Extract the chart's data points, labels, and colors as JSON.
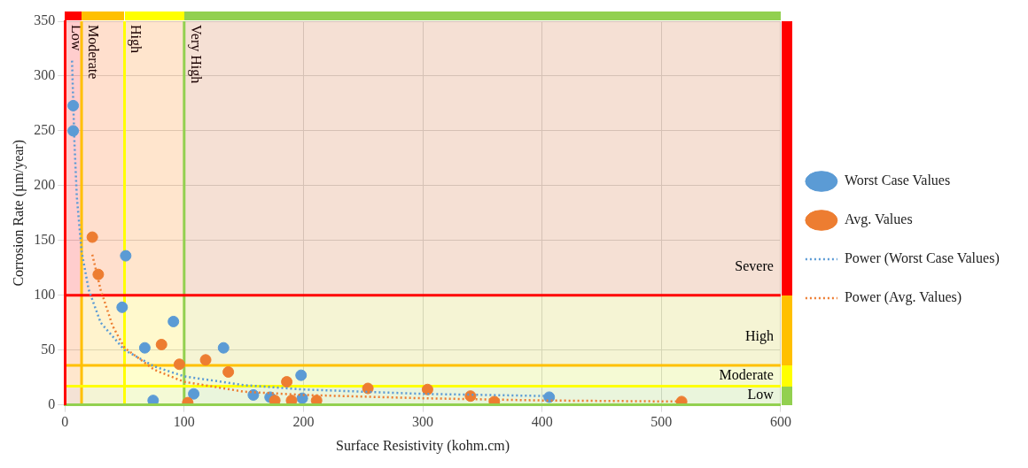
{
  "chart_data": {
    "type": "scatter",
    "xlabel": "Surface Resistivity (kohm.cm)",
    "ylabel": "Corrosion Rate (µm/year)",
    "xlim": [
      0,
      600
    ],
    "xticks": [
      0,
      100,
      200,
      300,
      400,
      500,
      600
    ],
    "ylim": [
      0,
      350
    ],
    "yticks": [
      0,
      50,
      100,
      150,
      200,
      250,
      300,
      350
    ],
    "grid": true,
    "legend": "right",
    "marker": "circle",
    "series": [
      {
        "name": "Worst Case Values",
        "type": "scatter",
        "color": "#5b9bd5",
        "x": [
          7,
          7,
          51,
          48,
          67,
          91,
          74,
          108,
          133,
          158,
          172,
          198,
          199,
          406
        ],
        "values": [
          273,
          250,
          136,
          89,
          52,
          76,
          4,
          10,
          52,
          9,
          7,
          27,
          6,
          7
        ]
      },
      {
        "name": "Avg. Values",
        "type": "scatter",
        "color": "#ed7d31",
        "x": [
          23,
          28,
          81,
          96,
          103,
          118,
          137,
          176,
          186,
          190,
          211,
          254,
          304,
          340,
          360,
          517
        ],
        "values": [
          153,
          119,
          55,
          37,
          2,
          41,
          30,
          4,
          21,
          4,
          4,
          15,
          14,
          8,
          3,
          3
        ]
      },
      {
        "name": "Power (Worst Case Values)",
        "type": "line",
        "color": "#5b9bd5",
        "marker": "none",
        "line_style": "dotted",
        "x": [
          6,
          8,
          10,
          14,
          20,
          30,
          50,
          75,
          100,
          150,
          200,
          300,
          406
        ],
        "values": [
          314,
          240,
          190,
          140,
          105,
          75,
          50,
          35,
          26,
          18,
          14,
          10,
          8
        ]
      },
      {
        "name": "Power (Avg. Values)",
        "type": "line",
        "color": "#ed7d31",
        "marker": "none",
        "line_style": "dotted",
        "x": [
          23,
          30,
          40,
          50,
          75,
          100,
          150,
          200,
          300,
          400,
          517
        ],
        "values": [
          137,
          105,
          72,
          52,
          32,
          21,
          12,
          9,
          6,
          4,
          3
        ]
      }
    ],
    "ref_lines": [
      {
        "axis": "x",
        "value": 14,
        "color": "#ffc000"
      },
      {
        "axis": "x",
        "value": 50,
        "color": "#ffff00"
      },
      {
        "axis": "x",
        "value": 100,
        "color": "#92d050"
      },
      {
        "axis": "y",
        "value": 100,
        "color": "#ff0000"
      },
      {
        "axis": "y",
        "value": 36,
        "color": "#ffc000"
      },
      {
        "axis": "y",
        "value": 17,
        "color": "#ffff00"
      }
    ],
    "bands": [
      {
        "axis": "x",
        "from": 0,
        "to": 14,
        "label": "Low",
        "color": "#ff0000"
      },
      {
        "axis": "x",
        "from": 14,
        "to": 50,
        "label": "Moderate",
        "color": "#ffc000"
      },
      {
        "axis": "x",
        "from": 50,
        "to": 100,
        "label": "High",
        "color": "#ffff00"
      },
      {
        "axis": "x",
        "from": 100,
        "to": 600,
        "label": "Very High",
        "color": "#92d050"
      },
      {
        "axis": "y",
        "from": 100,
        "to": 350,
        "label": "Severe",
        "color": "#ff0000"
      },
      {
        "axis": "y",
        "from": 36,
        "to": 100,
        "label": "High",
        "color": "#ffc000"
      },
      {
        "axis": "y",
        "from": 17,
        "to": 36,
        "label": "Moderate",
        "color": "#ffff00"
      },
      {
        "axis": "y",
        "from": 0,
        "to": 17,
        "label": "Low",
        "color": "#92d050"
      }
    ]
  }
}
